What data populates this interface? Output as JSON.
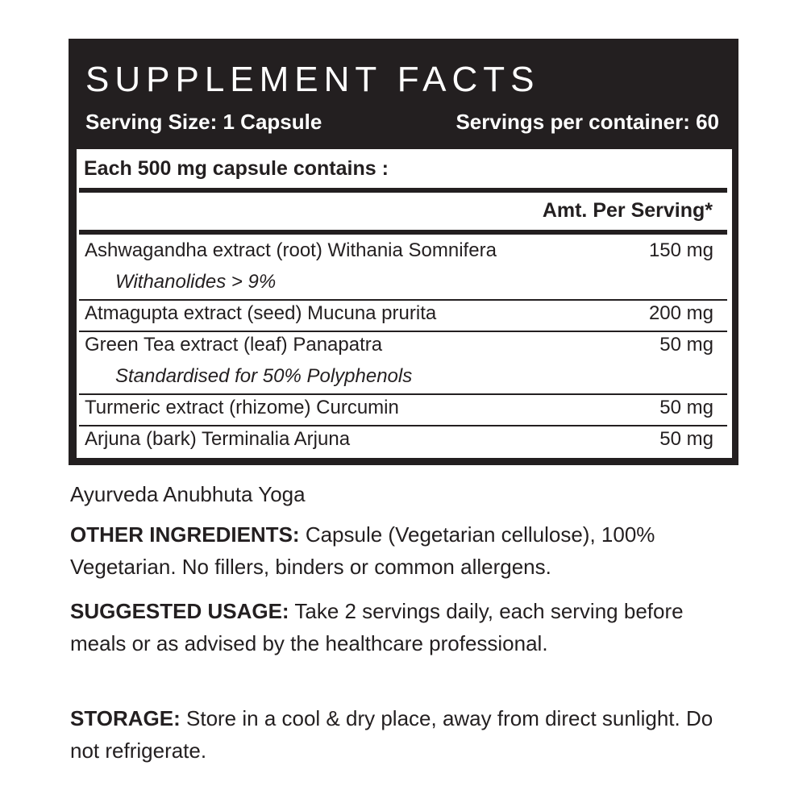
{
  "header": {
    "title": "SUPPLEMENT FACTS",
    "serving_size": "Serving Size: 1 Capsule",
    "servings_per_container": "Servings per container: 60"
  },
  "table": {
    "caption": "Each 500 mg capsule contains :",
    "column_header": "Amt. Per Serving*",
    "rows": [
      {
        "name": "Ashwagandha extract (root) Withania Somnifera",
        "amount": "150 mg",
        "note": "Withanolides > 9%"
      },
      {
        "name": "Atmagupta extract (seed) Mucuna prurita",
        "amount": "200 mg"
      },
      {
        "name": "Green Tea extract (leaf) Panapatra",
        "amount": "50 mg",
        "note": "Standardised for 50% Polyphenols"
      },
      {
        "name": "Turmeric extract (rhizome) Curcumin",
        "amount": "50 mg"
      },
      {
        "name": "Arjuna (bark) Terminalia Arjuna",
        "amount": "50 mg"
      }
    ]
  },
  "formulation": "Ayurveda Anubhuta Yoga",
  "sections": [
    {
      "label": "OTHER INGREDIENTS:",
      "text": "Capsule (Vegetarian cellulose), 100% Vegetarian. No fillers, binders or common allergens."
    },
    {
      "label": "SUGGESTED USAGE:",
      "text": "Take 2 servings daily, each serving before meals or as advised by the healthcare professional."
    },
    {
      "label": "STORAGE:",
      "text": "Store in a cool & dry place, away from direct sunlight. Do not refrigerate."
    }
  ]
}
